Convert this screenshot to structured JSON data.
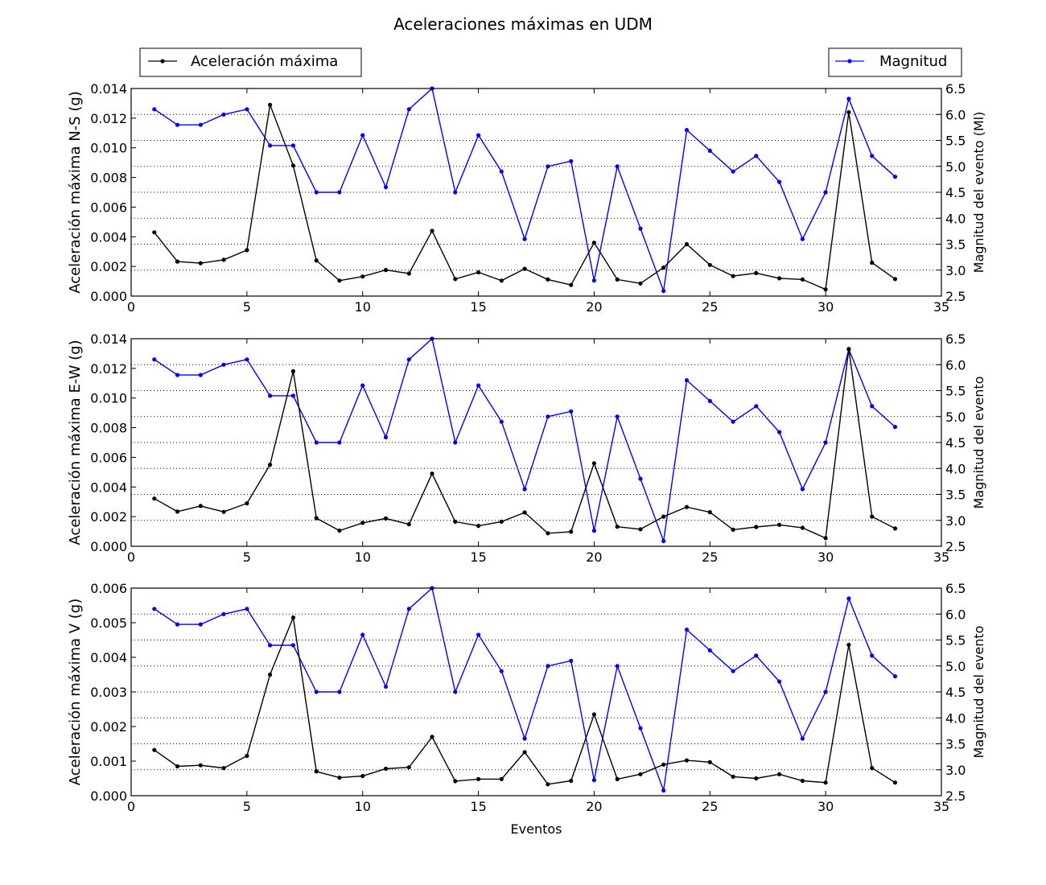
{
  "figure": {
    "title": "Aceleraciones máximas en UDM",
    "legend_left": "Aceleración máxima",
    "legend_right": "Magnitud"
  },
  "chart_data": [
    {
      "type": "line",
      "x": [
        1,
        2,
        3,
        4,
        5,
        6,
        7,
        8,
        9,
        10,
        11,
        12,
        13,
        14,
        15,
        16,
        17,
        18,
        19,
        20,
        21,
        22,
        23,
        24,
        25,
        26,
        27,
        28,
        29,
        30,
        31,
        32,
        33
      ],
      "xlim": [
        0,
        35
      ],
      "xticks": [
        0,
        5,
        10,
        15,
        20,
        25,
        30,
        35
      ],
      "xlabel": "",
      "ylabel": "Aceleración máxima N-S (g)",
      "ylim": [
        0,
        0.014
      ],
      "yticks": [
        "0.000",
        "0.002",
        "0.004",
        "0.006",
        "0.008",
        "0.010",
        "0.012",
        "0.014"
      ],
      "y2label": "Magnitud del evento (Ml)",
      "y2lim": [
        2.5,
        6.5
      ],
      "y2ticks": [
        "2.5",
        "3.0",
        "3.5",
        "4.0",
        "4.5",
        "5.0",
        "5.5",
        "6.0",
        "6.5"
      ],
      "grid": "horizontal dotted (magnitude axis)",
      "series": [
        {
          "name": "Aceleración máxima",
          "axis": "left",
          "color": "#000000",
          "values": [
            0.0043,
            0.00233,
            0.00222,
            0.00245,
            0.0031,
            0.0129,
            0.0088,
            0.0024,
            0.00104,
            0.00132,
            0.00176,
            0.00152,
            0.0044,
            0.00115,
            0.0016,
            0.00104,
            0.00184,
            0.00112,
            0.00075,
            0.0036,
            0.00112,
            0.00085,
            0.00192,
            0.0035,
            0.0021,
            0.00135,
            0.00155,
            0.0012,
            0.00112,
            0.00045,
            0.0124,
            0.00225,
            0.00115
          ]
        },
        {
          "name": "Magnitud",
          "axis": "right",
          "color": "#0000ff",
          "values": [
            6.1,
            5.8,
            5.8,
            6.0,
            6.1,
            5.4,
            5.4,
            4.5,
            4.5,
            5.6,
            4.6,
            6.1,
            6.5,
            4.5,
            5.6,
            4.9,
            3.6,
            5.0,
            5.1,
            2.8,
            5.0,
            3.8,
            2.6,
            5.7,
            5.3,
            4.9,
            5.2,
            4.7,
            3.6,
            4.5,
            6.3,
            5.2,
            4.8
          ]
        }
      ]
    },
    {
      "type": "line",
      "x": [
        1,
        2,
        3,
        4,
        5,
        6,
        7,
        8,
        9,
        10,
        11,
        12,
        13,
        14,
        15,
        16,
        17,
        18,
        19,
        20,
        21,
        22,
        23,
        24,
        25,
        26,
        27,
        28,
        29,
        30,
        31,
        32,
        33
      ],
      "xlim": [
        0,
        35
      ],
      "xticks": [
        0,
        5,
        10,
        15,
        20,
        25,
        30,
        35
      ],
      "xlabel": "",
      "ylabel": "Aceleración máxima E-W (g)",
      "ylim": [
        0,
        0.014
      ],
      "yticks": [
        "0.000",
        "0.002",
        "0.004",
        "0.006",
        "0.008",
        "0.010",
        "0.012",
        "0.014"
      ],
      "y2label": "Magnitud del evento",
      "y2lim": [
        2.5,
        6.5
      ],
      "y2ticks": [
        "2.5",
        "3.0",
        "3.5",
        "4.0",
        "4.5",
        "5.0",
        "5.5",
        "6.0",
        "6.5"
      ],
      "grid": "horizontal dotted (magnitude axis)",
      "series": [
        {
          "name": "Aceleración máxima",
          "axis": "left",
          "color": "#000000",
          "values": [
            0.00322,
            0.00234,
            0.00272,
            0.00232,
            0.0029,
            0.0055,
            0.0118,
            0.0019,
            0.00106,
            0.00158,
            0.00188,
            0.00148,
            0.0049,
            0.00166,
            0.00138,
            0.00166,
            0.00228,
            0.00088,
            0.00098,
            0.0056,
            0.00132,
            0.00115,
            0.002,
            0.00265,
            0.0023,
            0.00112,
            0.0013,
            0.00145,
            0.00125,
            0.00055,
            0.0133,
            0.002,
            0.0012
          ]
        },
        {
          "name": "Magnitud",
          "axis": "right",
          "color": "#0000ff",
          "values": [
            6.1,
            5.8,
            5.8,
            6.0,
            6.1,
            5.4,
            5.4,
            4.5,
            4.5,
            5.6,
            4.6,
            6.1,
            6.5,
            4.5,
            5.6,
            4.9,
            3.6,
            5.0,
            5.1,
            2.8,
            5.0,
            3.8,
            2.6,
            5.7,
            5.3,
            4.9,
            5.2,
            4.7,
            3.6,
            4.5,
            6.3,
            5.2,
            4.8
          ]
        }
      ]
    },
    {
      "type": "line",
      "x": [
        1,
        2,
        3,
        4,
        5,
        6,
        7,
        8,
        9,
        10,
        11,
        12,
        13,
        14,
        15,
        16,
        17,
        18,
        19,
        20,
        21,
        22,
        23,
        24,
        25,
        26,
        27,
        28,
        29,
        30,
        31,
        32,
        33
      ],
      "xlim": [
        0,
        35
      ],
      "xticks": [
        0,
        5,
        10,
        15,
        20,
        25,
        30,
        35
      ],
      "xlabel": "Eventos",
      "ylabel": "Aceleración máxima V (g)",
      "ylim": [
        0,
        0.006
      ],
      "yticks": [
        "0.000",
        "0.001",
        "0.002",
        "0.003",
        "0.004",
        "0.005",
        "0.006"
      ],
      "y2label": "Magnitud del evento",
      "y2lim": [
        2.5,
        6.5
      ],
      "y2ticks": [
        "2.5",
        "3.0",
        "3.5",
        "4.0",
        "4.5",
        "5.0",
        "5.5",
        "6.0",
        "6.5"
      ],
      "grid": "horizontal dotted (magnitude axis)",
      "series": [
        {
          "name": "Aceleración máxima",
          "axis": "left",
          "color": "#000000",
          "values": [
            0.00132,
            0.00085,
            0.00088,
            0.0008,
            0.00115,
            0.0035,
            0.00515,
            0.0007,
            0.00052,
            0.00057,
            0.00078,
            0.00082,
            0.0017,
            0.00042,
            0.00048,
            0.00048,
            0.00126,
            0.00033,
            0.00043,
            0.00235,
            0.00048,
            0.00062,
            0.0009,
            0.00102,
            0.00097,
            0.00055,
            0.0005,
            0.00062,
            0.00043,
            0.00038,
            0.00436,
            0.0008,
            0.00038
          ]
        },
        {
          "name": "Magnitud",
          "axis": "right",
          "color": "#0000ff",
          "values": [
            6.1,
            5.8,
            5.8,
            6.0,
            6.1,
            5.4,
            5.4,
            4.5,
            4.5,
            5.6,
            4.6,
            6.1,
            6.5,
            4.5,
            5.6,
            4.9,
            3.6,
            5.0,
            5.1,
            2.8,
            5.0,
            3.8,
            2.6,
            5.7,
            5.3,
            4.9,
            5.2,
            4.7,
            3.6,
            4.5,
            6.3,
            5.2,
            4.8
          ]
        }
      ]
    }
  ]
}
